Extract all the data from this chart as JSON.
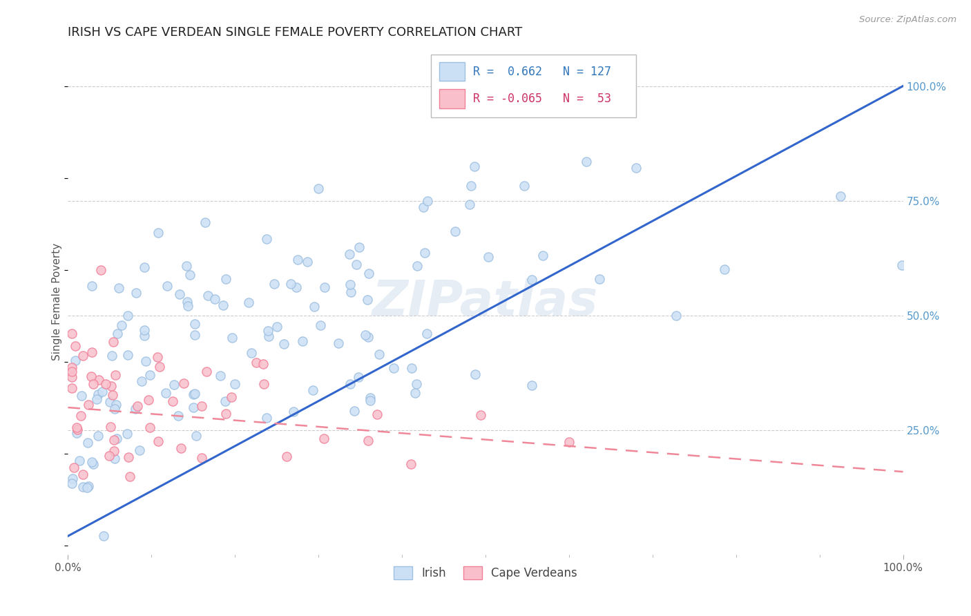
{
  "title": "IRISH VS CAPE VERDEAN SINGLE FEMALE POVERTY CORRELATION CHART",
  "source": "Source: ZipAtlas.com",
  "ylabel": "Single Female Poverty",
  "watermark": "ZIPatlas",
  "irish_R": 0.662,
  "irish_N": 127,
  "cape_R": -0.065,
  "cape_N": 53,
  "irish_color": "#9dbfe0",
  "irish_fill": "#cce0f5",
  "cape_color": "#f08098",
  "cape_fill": "#f9c0cc",
  "bg_color": "#ffffff",
  "grid_color": "#cccccc",
  "title_color": "#222222",
  "line_blue": "#3366cc",
  "line_pink": "#ee8899"
}
